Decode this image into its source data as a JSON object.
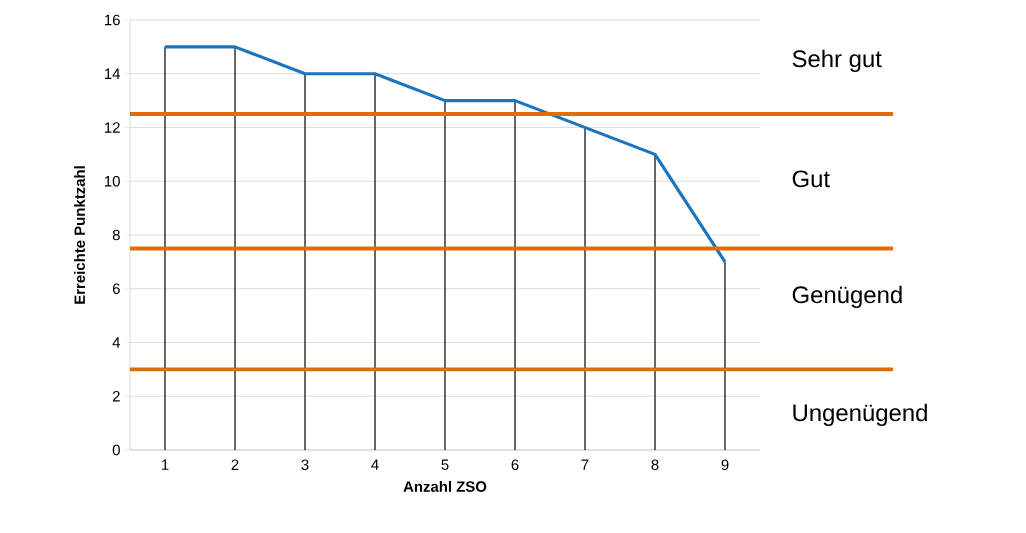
{
  "chart_data": {
    "type": "line",
    "xlabel": "Anzahl ZSO",
    "ylabel": "Erreichte Punktzahl",
    "categories": [
      "1",
      "2",
      "3",
      "4",
      "5",
      "6",
      "7",
      "8",
      "9"
    ],
    "series": [
      {
        "type": "bar",
        "color": "#000000",
        "values": [
          15,
          15,
          14,
          14,
          13,
          13,
          12,
          11,
          7
        ]
      },
      {
        "color": "#1b75bc",
        "values": [
          15,
          15,
          14,
          14,
          13,
          13,
          12,
          11,
          7
        ]
      }
    ],
    "ylim": [
      0,
      16
    ],
    "yticks": [
      0,
      2,
      4,
      6,
      8,
      10,
      12,
      14,
      16
    ],
    "grid": "y",
    "marker": "none",
    "line_style": "solid",
    "ref_lines": [
      {
        "axis": "y",
        "value": 12.5,
        "color": "#e36c09"
      },
      {
        "axis": "y",
        "value": 7.5,
        "color": "#e36c09"
      },
      {
        "axis": "y",
        "value": 3,
        "color": "#e36c09"
      }
    ],
    "annotations": [
      "Sehr gut",
      "Gut",
      "Genügend",
      "Ungenügend"
    ]
  }
}
